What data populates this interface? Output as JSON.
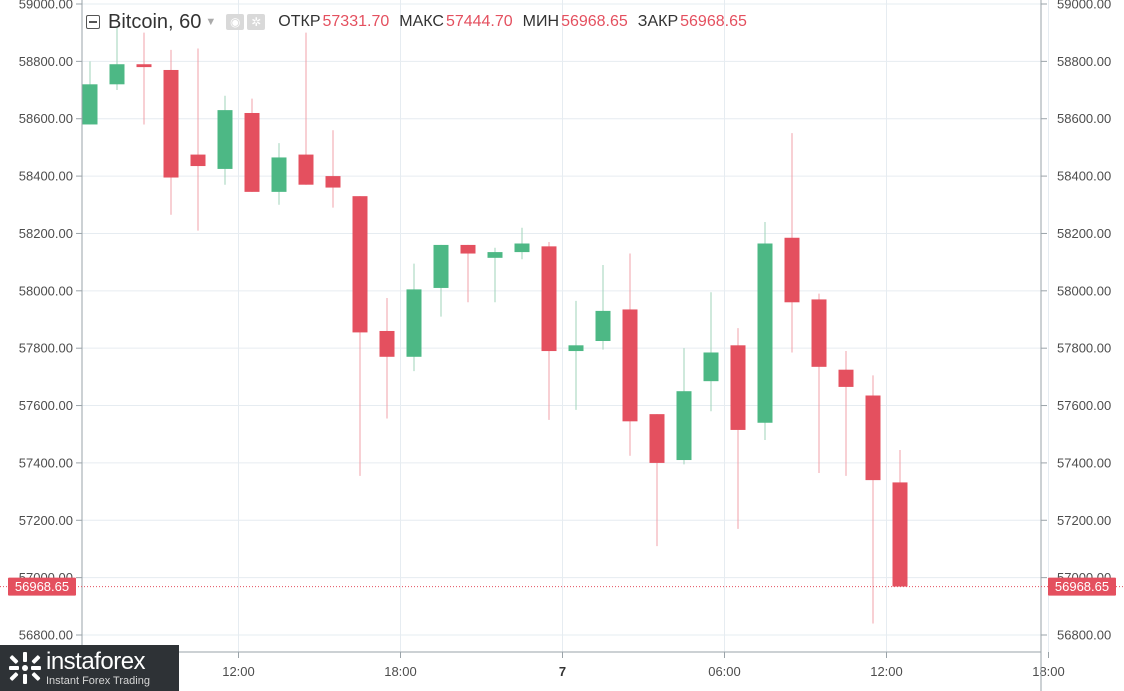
{
  "header": {
    "symbol": "Bitcoin, 60",
    "open_label": "ОТКР",
    "open_value": "57331.70",
    "high_label": "МАКС",
    "high_value": "57444.70",
    "low_label": "МИН",
    "low_value": "56968.65",
    "close_label": "ЗАКР",
    "close_value": "56968.65"
  },
  "price_marker": {
    "label": "56968.65",
    "value": 56968.65
  },
  "logo": {
    "name": "instaforex",
    "tagline": "Instant Forex Trading"
  },
  "colors": {
    "up": "#4db885",
    "down": "#e4505f",
    "grid": "#e6ecf1",
    "axis_text": "#4d4d4d"
  },
  "chart_data": {
    "type": "candlestick",
    "ylim": [
      56750,
      59000
    ],
    "y_ticks": [
      56800,
      57000,
      57200,
      57400,
      57600,
      57800,
      58000,
      58200,
      58400,
      58600,
      58800,
      59000
    ],
    "y_tick_labels": [
      "56800.00",
      "57000.00",
      "57200.00",
      "57400.00",
      "57600.00",
      "57800.00",
      "58000.00",
      "58200.00",
      "58400.00",
      "58600.00",
      "58800.00",
      "59000.00"
    ],
    "x_ticks": [
      {
        "label": "12:00",
        "bar": 5.5,
        "bold": false
      },
      {
        "label": "18:00",
        "bar": 11.5,
        "bold": false
      },
      {
        "label": "7",
        "bar": 17.5,
        "bold": true
      },
      {
        "label": "06:00",
        "bar": 23.5,
        "bold": false
      },
      {
        "label": "12:00",
        "bar": 29.5,
        "bold": false
      },
      {
        "label": "18:00",
        "bar": 35.5,
        "bold": false
      }
    ],
    "candles": [
      {
        "o": 58580,
        "h": 58800,
        "l": 58580,
        "c": 58720
      },
      {
        "o": 58720,
        "h": 58920,
        "l": 58700,
        "c": 58790
      },
      {
        "o": 58790,
        "h": 58900,
        "l": 58580,
        "c": 58780
      },
      {
        "o": 58770,
        "h": 58840,
        "l": 58265,
        "c": 58395
      },
      {
        "o": 58475,
        "h": 58845,
        "l": 58210,
        "c": 58435
      },
      {
        "o": 58425,
        "h": 58680,
        "l": 58370,
        "c": 58630
      },
      {
        "o": 58620,
        "h": 58670,
        "l": 58345,
        "c": 58345
      },
      {
        "o": 58345,
        "h": 58515,
        "l": 58300,
        "c": 58465
      },
      {
        "o": 58475,
        "h": 58900,
        "l": 58370,
        "c": 58370
      },
      {
        "o": 58400,
        "h": 58560,
        "l": 58290,
        "c": 58360
      },
      {
        "o": 58330,
        "h": 58330,
        "l": 57355,
        "c": 57855
      },
      {
        "o": 57860,
        "h": 57975,
        "l": 57555,
        "c": 57770
      },
      {
        "o": 57770,
        "h": 58095,
        "l": 57720,
        "c": 58005
      },
      {
        "o": 58010,
        "h": 58160,
        "l": 57910,
        "c": 58160
      },
      {
        "o": 58160,
        "h": 58160,
        "l": 57960,
        "c": 58130
      },
      {
        "o": 58115,
        "h": 58150,
        "l": 57960,
        "c": 58135
      },
      {
        "o": 58135,
        "h": 58220,
        "l": 58110,
        "c": 58165
      },
      {
        "o": 58155,
        "h": 58170,
        "l": 57550,
        "c": 57790
      },
      {
        "o": 57790,
        "h": 57965,
        "l": 57585,
        "c": 57810
      },
      {
        "o": 57825,
        "h": 58090,
        "l": 57795,
        "c": 57930
      },
      {
        "o": 57935,
        "h": 58130,
        "l": 57425,
        "c": 57545
      },
      {
        "o": 57570,
        "h": 57570,
        "l": 57110,
        "c": 57400
      },
      {
        "o": 57410,
        "h": 57800,
        "l": 57395,
        "c": 57650
      },
      {
        "o": 57685,
        "h": 57995,
        "l": 57580,
        "c": 57785
      },
      {
        "o": 57810,
        "h": 57870,
        "l": 57170,
        "c": 57515
      },
      {
        "o": 57540,
        "h": 58240,
        "l": 57480,
        "c": 58165
      },
      {
        "o": 58185,
        "h": 58550,
        "l": 57785,
        "c": 57960
      },
      {
        "o": 57970,
        "h": 57990,
        "l": 57365,
        "c": 57735
      },
      {
        "o": 57725,
        "h": 57790,
        "l": 57355,
        "c": 57665
      },
      {
        "o": 57635,
        "h": 57705,
        "l": 56840,
        "c": 57340
      },
      {
        "o": 57332,
        "h": 57445,
        "l": 56969,
        "c": 56969
      }
    ]
  }
}
